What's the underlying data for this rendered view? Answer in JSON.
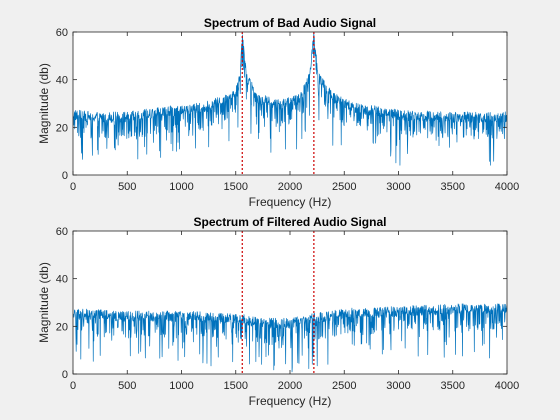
{
  "chart_data": [
    {
      "type": "line",
      "title": "Spectrum of Bad Audio Signal",
      "xlabel": "Frequency (Hz)",
      "ylabel": "Magnitude (db)",
      "xlim": [
        0,
        4000
      ],
      "ylim": [
        0,
        60
      ],
      "xticks": [
        0,
        500,
        1000,
        1500,
        2000,
        2500,
        3000,
        3500,
        4000
      ],
      "yticks": [
        0,
        20,
        40,
        60
      ],
      "grid": false,
      "series": [
        {
          "color": "#0072bd",
          "style": "noisy spectrum",
          "envelope": {
            "x": [
              0,
              200,
              500,
              800,
              1000,
              1200,
              1400,
              1500,
              1540,
              1560,
              1600,
              1700,
              1900,
              2100,
              2180,
              2220,
              2260,
              2400,
              2600,
              3000,
              3500,
              4000
            ],
            "y": [
              24,
              23,
              23,
              25,
              26,
              27,
              30,
              34,
              40,
              58,
              40,
              31,
              28,
              31,
              40,
              58,
              40,
              31,
              27,
              24,
              23,
              23
            ]
          },
          "peaks": [
            {
              "x": 1560,
              "y": 58
            },
            {
              "x": 2220,
              "y": 58
            }
          ]
        }
      ],
      "markers": {
        "color": "#cc0000",
        "x": [
          1560,
          2220
        ]
      }
    },
    {
      "type": "line",
      "title": "Spectrum of Filtered Audio Signal",
      "xlabel": "Frequency (Hz)",
      "ylabel": "Magnitude (db)",
      "xlim": [
        0,
        4000
      ],
      "ylim": [
        0,
        60
      ],
      "xticks": [
        0,
        500,
        1000,
        1500,
        2000,
        2500,
        3000,
        3500,
        4000
      ],
      "yticks": [
        0,
        20,
        40,
        60
      ],
      "grid": false,
      "series": [
        {
          "color": "#0072bd",
          "style": "noisy spectrum",
          "envelope": {
            "x": [
              0,
              500,
              1000,
              1500,
              1800,
              2000,
              2200,
              2500,
              3000,
              3500,
              4000
            ],
            "y": [
              24,
              23,
              23,
              22,
              20,
              20,
              22,
              24,
              25,
              26,
              26
            ]
          },
          "peaks": []
        }
      ],
      "markers": {
        "color": "#cc0000",
        "x": [
          1560,
          2220
        ]
      }
    }
  ]
}
